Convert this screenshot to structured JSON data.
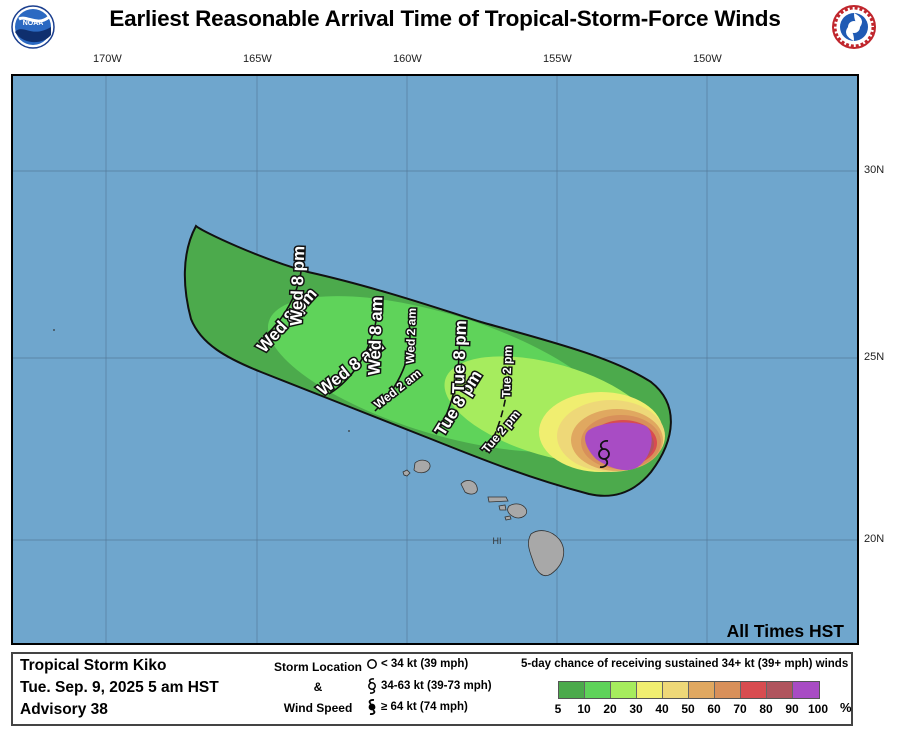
{
  "title": "Earliest Reasonable Arrival Time of Tropical-Storm-Force Winds",
  "logos": {
    "left": "noaa-logo",
    "right": "nws-logo"
  },
  "map": {
    "lon_labels": [
      "170W",
      "165W",
      "160W",
      "155W",
      "150W"
    ],
    "lat_labels": [
      "30N",
      "25N",
      "20N"
    ],
    "region_label": "HI",
    "times_note": "All Times HST",
    "colors": {
      "ocean": "#6fa6cd",
      "land": "#a8a8a8"
    }
  },
  "arrival_contours": [
    {
      "label": "Wed 8 pm",
      "size": "large"
    },
    {
      "label": "Wed 8 am",
      "size": "large"
    },
    {
      "label": "Wed 2 am",
      "size": "small"
    },
    {
      "label": "Tue 8 pm",
      "size": "large"
    },
    {
      "label": "Tue 2 pm",
      "size": "small"
    }
  ],
  "storm": {
    "name": "Tropical Storm Kiko",
    "date": "Tue. Sep. 9, 2025  5 am HST",
    "advisory": "Advisory 38"
  },
  "legend": {
    "location_title": "Storm Location",
    "amp": "&",
    "wind_title": "Wind Speed",
    "symbols": [
      {
        "icon": "circle-icon",
        "text": "< 34 kt (39 mph)"
      },
      {
        "icon": "tropical-storm-icon",
        "text": "34-63 kt (39-73 mph)"
      },
      {
        "icon": "hurricane-icon",
        "text": "≥ 64 kt (74 mph)"
      }
    ],
    "scale_title": "5-day chance of receiving sustained 34+ kt (39+ mph) winds",
    "scale_colors": [
      "#4caa4c",
      "#5fd35a",
      "#a6ec5e",
      "#f0ee70",
      "#eed878",
      "#e0a860",
      "#d8905a",
      "#d84c50",
      "#b0545e",
      "#a84cc4"
    ],
    "scale_labels": [
      "5",
      "10",
      "20",
      "30",
      "40",
      "50",
      "60",
      "70",
      "80",
      "90",
      "100"
    ],
    "scale_unit": "%"
  }
}
